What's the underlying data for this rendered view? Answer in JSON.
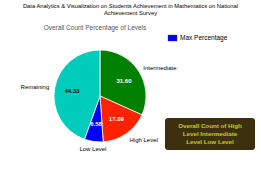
{
  "chart_data": {
    "type": "pie",
    "title": "Data Analytics & Visualization on Students Achievement in Mathematics on National\nAchievement Survey",
    "subtitle": "Overall Count Percentage of Levels",
    "categories": [
      "Intermediate",
      "High Level",
      "Low Level",
      "Remaining"
    ],
    "values": [
      31.6,
      17.09,
      6.58,
      44.33
    ],
    "value_labels": [
      "31.60",
      "17.09",
      "6.58",
      "44.33"
    ],
    "colors": [
      "#008000",
      "#ff2200",
      "#0000ff",
      "#00ccbb"
    ],
    "data_labels": true,
    "legend": "upper left",
    "legend_entries": [
      {
        "name": "Max Percentage",
        "color": "#0000ff"
      }
    ],
    "annotations": [
      "Overall Count of High\nLevel Intermediate\nLevel Low Level"
    ]
  }
}
